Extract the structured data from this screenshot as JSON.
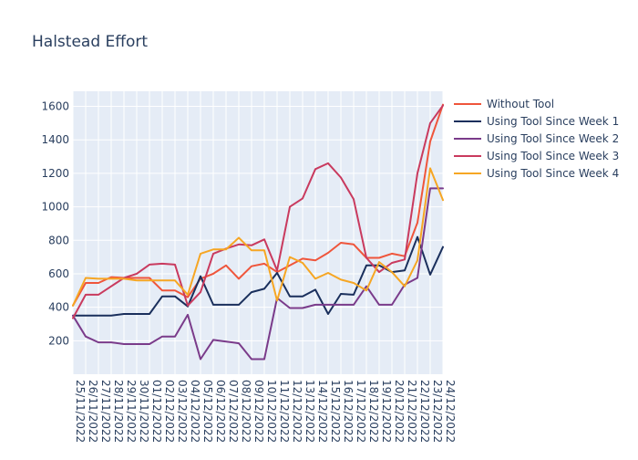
{
  "chart_data": {
    "type": "line",
    "title": "Halstead Effort",
    "xlabel": "",
    "ylabel": "",
    "ylim": [
      0,
      1690
    ],
    "yticks": [
      200,
      400,
      600,
      800,
      1000,
      1200,
      1400,
      1600
    ],
    "grid": true,
    "legend_position": "right",
    "categories": [
      "25/11/2022",
      "26/11/2022",
      "27/11/2022",
      "28/11/2022",
      "29/11/2022",
      "30/11/2022",
      "01/12/2022",
      "02/12/2022",
      "03/12/2022",
      "04/12/2022",
      "05/12/2022",
      "06/12/2022",
      "07/12/2022",
      "08/12/2022",
      "09/12/2022",
      "10/12/2022",
      "11/12/2022",
      "12/12/2022",
      "13/12/2022",
      "14/12/2022",
      "15/12/2022",
      "16/12/2022",
      "17/12/2022",
      "18/12/2022",
      "19/12/2022",
      "20/12/2022",
      "21/12/2022",
      "22/12/2022",
      "23/12/2022",
      "24/12/2022"
    ],
    "series": [
      {
        "name": "Without Tool",
        "color": "#ef553b",
        "values": [
          410,
          545,
          545,
          580,
          575,
          575,
          575,
          500,
          500,
          460,
          570,
          600,
          650,
          570,
          645,
          660,
          610,
          650,
          690,
          680,
          725,
          785,
          775,
          695,
          695,
          720,
          705,
          905,
          1390,
          1610
        ]
      },
      {
        "name": "Using Tool Since Week 1",
        "color": "#1a2f5c",
        "values": [
          350,
          350,
          350,
          350,
          360,
          360,
          360,
          465,
          465,
          405,
          585,
          415,
          415,
          415,
          490,
          510,
          605,
          465,
          465,
          505,
          360,
          480,
          475,
          650,
          650,
          610,
          620,
          820,
          595,
          760
        ]
      },
      {
        "name": "Using Tool Since Week 2",
        "color": "#7a3b8a",
        "values": [
          350,
          225,
          190,
          190,
          180,
          180,
          180,
          225,
          225,
          355,
          90,
          205,
          195,
          185,
          90,
          90,
          455,
          395,
          395,
          415,
          415,
          415,
          415,
          525,
          415,
          415,
          535,
          575,
          1110,
          1110
        ]
      },
      {
        "name": "Using Tool Since Week 3",
        "color": "#c93a5e",
        "values": [
          335,
          475,
          475,
          525,
          575,
          600,
          655,
          660,
          655,
          410,
          490,
          720,
          750,
          775,
          770,
          805,
          620,
          1000,
          1050,
          1225,
          1260,
          1175,
          1045,
          695,
          610,
          665,
          685,
          1200,
          1500,
          1605
        ]
      },
      {
        "name": "Using Tool Since Week 4",
        "color": "#f6a623",
        "values": [
          410,
          575,
          570,
          570,
          570,
          560,
          560,
          560,
          560,
          475,
          720,
          745,
          745,
          815,
          740,
          740,
          440,
          700,
          665,
          570,
          605,
          565,
          545,
          500,
          670,
          610,
          525,
          680,
          1230,
          1040
        ]
      }
    ]
  }
}
